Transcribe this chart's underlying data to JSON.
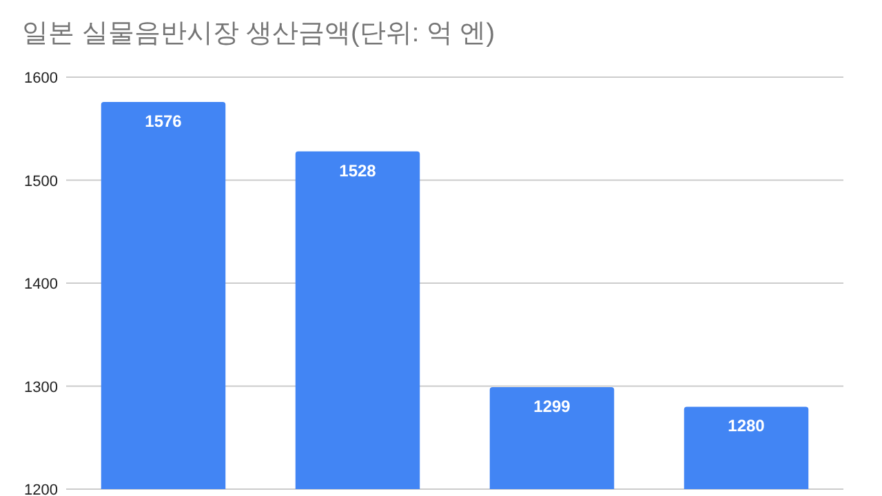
{
  "chart_data": {
    "type": "bar",
    "title": "일본 실물음반시장 생산금액(단위: 억 엔)",
    "categories": [
      null,
      null,
      null,
      null
    ],
    "values": [
      1576,
      1528,
      1299,
      1280
    ],
    "color": "#4285f4",
    "ylim": [
      1200,
      1600
    ],
    "yticks": [
      1200,
      1300,
      1400,
      1500,
      1600
    ],
    "grid": "y",
    "data_labels": true
  }
}
